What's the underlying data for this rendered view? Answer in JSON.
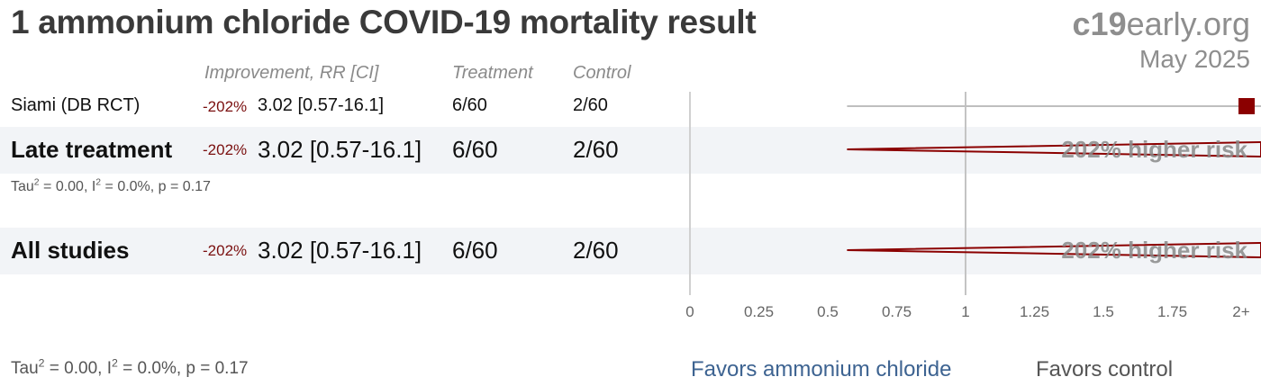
{
  "title": "1 ammonium chloride COVID-19 mortality result",
  "brand": {
    "prefix": "c19",
    "suffix": "early.org"
  },
  "date": "May 2025",
  "columns": {
    "improvement": "Improvement, RR [CI]",
    "treatment": "Treatment",
    "control": "Control"
  },
  "rows": [
    {
      "name": "Siami (DB RCT)",
      "improvement": "-202%",
      "rr_text": "3.02 [0.57-16.1]",
      "treatment": "6/60",
      "control": "2/60",
      "rr": 3.02,
      "ci_low": 0.57,
      "ci_high": 16.1
    }
  ],
  "late": {
    "name": "Late treatment",
    "improvement": "-202%",
    "rr_text": "3.02 [0.57-16.1]",
    "treatment": "6/60",
    "control": "2/60",
    "risk_label": "202% higher risk",
    "stats": {
      "tau": "Tau",
      "tau_rest": " = 0.00, I",
      "i_rest": " = 0.0%, p = 0.17",
      "sup": "2"
    }
  },
  "all": {
    "name": "All studies",
    "improvement": "-202%",
    "rr_text": "3.02 [0.57-16.1]",
    "treatment": "6/60",
    "control": "2/60",
    "risk_label": "202% higher risk"
  },
  "bottom_stats": {
    "tau": "Tau",
    "tau_rest": " = 0.00, I",
    "i_rest": " = 0.0%, p = 0.17",
    "sup": "2"
  },
  "favors": {
    "left": "Favors ammonium chloride",
    "right": "Favors control"
  },
  "colors": {
    "marker": "#8b0000",
    "ci_line": "#bfbfbf",
    "diamond": "#8b0000",
    "band": "#f2f4f7"
  },
  "chart_data": {
    "type": "forest",
    "xlim": [
      0,
      2
    ],
    "x_ticks": [
      "0",
      "0.25",
      "0.5",
      "0.75",
      "1",
      "1.25",
      "1.5",
      "1.75",
      "2+"
    ],
    "x_tick_values": [
      0,
      0.25,
      0.5,
      0.75,
      1,
      1.25,
      1.5,
      1.75,
      2
    ],
    "studies": [
      {
        "name": "Siami (DB RCT)",
        "rr": 3.02,
        "ci": [
          0.57,
          16.1
        ]
      }
    ],
    "pooled": [
      {
        "name": "Late treatment",
        "rr": 3.02,
        "ci": [
          0.57,
          16.1
        ]
      },
      {
        "name": "All studies",
        "rr": 3.02,
        "ci": [
          0.57,
          16.1
        ]
      }
    ]
  }
}
